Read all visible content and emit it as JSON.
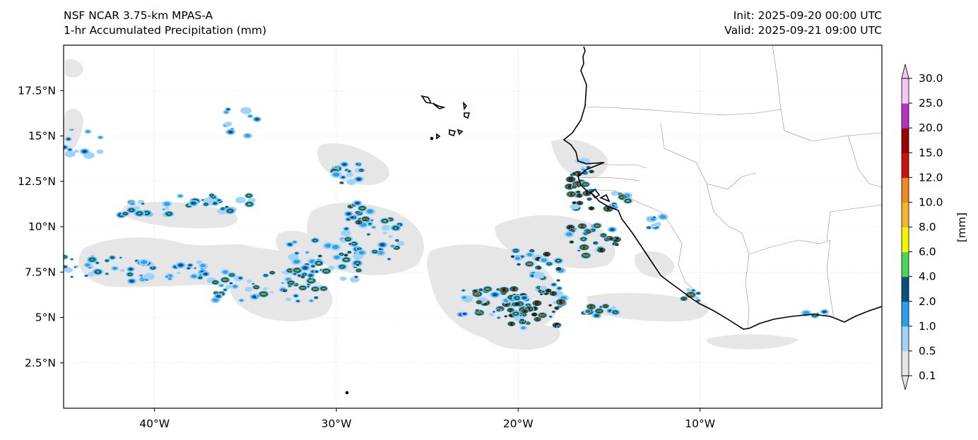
{
  "header": {
    "model": "NSF NCAR 3.75-km MPAS-A",
    "field": "1-hr Accumulated Precipitation (mm)",
    "init": "Init: 2025-09-20 00:00 UTC",
    "valid": "Valid: 2025-09-21 09:00 UTC"
  },
  "map": {
    "lon_range": [
      -45,
      0
    ],
    "lat_range": [
      0,
      20
    ],
    "lon_ticks": [
      {
        "lon": -40,
        "label": "40°W"
      },
      {
        "lon": -30,
        "label": "30°W"
      },
      {
        "lon": -20,
        "label": "20°W"
      },
      {
        "lon": -10,
        "label": "10°W"
      }
    ],
    "lat_ticks": [
      {
        "lat": 2.5,
        "label": "2.5°N"
      },
      {
        "lat": 5,
        "label": "5°N"
      },
      {
        "lat": 7.5,
        "label": "7.5°N"
      },
      {
        "lat": 10,
        "label": "10°N"
      },
      {
        "lat": 12.5,
        "label": "12.5°N"
      },
      {
        "lat": 15,
        "label": "15°N"
      },
      {
        "lat": 17.5,
        "label": "17.5°N"
      }
    ],
    "gridlines": true
  },
  "colorbar": {
    "label": "[mm]",
    "extend": "both",
    "levels": [
      "0.1",
      "0.5",
      "1.0",
      "2.0",
      "4.0",
      "6.0",
      "8.0",
      "10.0",
      "12.0",
      "15.0",
      "20.0",
      "25.0",
      "30.0"
    ],
    "colors": [
      "#e6e6e6",
      "#9fd3f7",
      "#2b9ef0",
      "#0b4f7c",
      "#4dd35a",
      "#f5f500",
      "#f7b52c",
      "#ee8a1f",
      "#cf1010",
      "#9c0000",
      "#b832c0",
      "#f5c6f6"
    ]
  }
}
